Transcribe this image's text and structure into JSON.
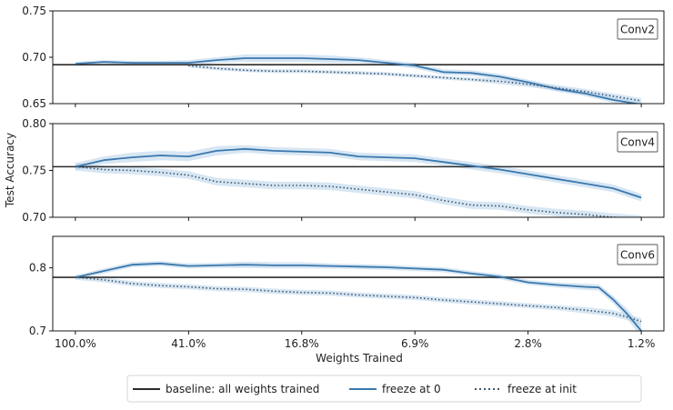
{
  "colors": {
    "baseline": "#2b2b2b",
    "freeze_zero": "#3a78ad",
    "freeze_init": "#3d556c",
    "band": "#b7d2ea"
  },
  "chart_data": [
    {
      "type": "line",
      "panel": "Conv2",
      "ylim": [
        0.65,
        0.75
      ],
      "yticks": [
        "0.65",
        "0.70",
        "0.75"
      ],
      "yticks_values": [
        0.65,
        0.7,
        0.75
      ],
      "baseline": 0.692,
      "series": [
        {
          "name": "freeze at 0",
          "style": "solid",
          "x": [
            0,
            5,
            10,
            15,
            20,
            25,
            30,
            35,
            40,
            45,
            50,
            55,
            60,
            65,
            70,
            75,
            80,
            85,
            90,
            95,
            100
          ],
          "values": [
            0.693,
            0.695,
            0.694,
            0.694,
            0.694,
            0.697,
            0.699,
            0.699,
            0.699,
            0.698,
            0.697,
            0.694,
            0.691,
            0.684,
            0.683,
            0.679,
            0.673,
            0.666,
            0.661,
            0.654,
            0.649
          ],
          "spread": [
            0.002,
            0.002,
            0.002,
            0.002,
            0.003,
            0.003,
            0.004,
            0.004,
            0.004,
            0.004,
            0.003,
            0.003,
            0.003,
            0.003,
            0.003,
            0.003,
            0.003,
            0.003,
            0.003,
            0.003,
            0.003
          ]
        },
        {
          "name": "freeze at init",
          "style": "dotted",
          "x": [
            20,
            25,
            30,
            35,
            40,
            45,
            50,
            55,
            60,
            65,
            70,
            75,
            80,
            85,
            90,
            95,
            100
          ],
          "values": [
            0.691,
            0.688,
            0.686,
            0.685,
            0.685,
            0.684,
            0.683,
            0.682,
            0.68,
            0.678,
            0.676,
            0.674,
            0.671,
            0.667,
            0.663,
            0.658,
            0.653
          ],
          "spread": [
            0.002,
            0.002,
            0.002,
            0.002,
            0.002,
            0.002,
            0.002,
            0.002,
            0.002,
            0.002,
            0.002,
            0.003,
            0.003,
            0.003,
            0.003,
            0.003,
            0.003
          ]
        }
      ]
    },
    {
      "type": "line",
      "panel": "Conv4",
      "ylim": [
        0.7,
        0.8
      ],
      "yticks": [
        "0.70",
        "0.75",
        "0.80"
      ],
      "yticks_values": [
        0.7,
        0.75,
        0.8
      ],
      "baseline": 0.754,
      "series": [
        {
          "name": "freeze at 0",
          "style": "solid",
          "x": [
            0,
            5,
            10,
            15,
            20,
            25,
            30,
            35,
            40,
            45,
            50,
            55,
            60,
            65,
            70,
            75,
            80,
            85,
            90,
            95,
            100
          ],
          "values": [
            0.754,
            0.761,
            0.764,
            0.766,
            0.765,
            0.771,
            0.773,
            0.771,
            0.77,
            0.769,
            0.765,
            0.764,
            0.763,
            0.759,
            0.755,
            0.751,
            0.746,
            0.741,
            0.736,
            0.731,
            0.721
          ],
          "spread": [
            0.004,
            0.004,
            0.005,
            0.005,
            0.005,
            0.005,
            0.004,
            0.004,
            0.004,
            0.004,
            0.004,
            0.004,
            0.004,
            0.004,
            0.004,
            0.004,
            0.004,
            0.004,
            0.004,
            0.004,
            0.004
          ]
        },
        {
          "name": "freeze at init",
          "style": "dotted",
          "x": [
            0,
            5,
            10,
            15,
            20,
            25,
            30,
            35,
            40,
            45,
            50,
            55,
            60,
            65,
            70,
            75,
            80,
            85,
            90,
            95,
            100
          ],
          "values": [
            0.754,
            0.751,
            0.75,
            0.748,
            0.745,
            0.738,
            0.736,
            0.734,
            0.734,
            0.733,
            0.73,
            0.727,
            0.724,
            0.718,
            0.713,
            0.712,
            0.708,
            0.705,
            0.703,
            0.7,
            0.698
          ],
          "spread": [
            0.004,
            0.004,
            0.004,
            0.004,
            0.004,
            0.004,
            0.004,
            0.004,
            0.004,
            0.004,
            0.004,
            0.004,
            0.004,
            0.004,
            0.004,
            0.004,
            0.004,
            0.004,
            0.004,
            0.004,
            0.004
          ]
        }
      ]
    },
    {
      "type": "line",
      "panel": "Conv6",
      "ylim": [
        0.7,
        0.85
      ],
      "yticks": [
        "0.7",
        "0.8"
      ],
      "yticks_values": [
        0.7,
        0.8
      ],
      "baseline": 0.785,
      "series": [
        {
          "name": "freeze at 0",
          "style": "solid",
          "x": [
            0,
            5,
            10,
            15,
            20,
            25,
            30,
            35,
            40,
            45,
            50,
            55,
            60,
            65,
            70,
            75,
            80,
            85,
            90,
            92.5,
            95,
            97.5,
            100
          ],
          "values": [
            0.785,
            0.795,
            0.805,
            0.807,
            0.803,
            0.804,
            0.805,
            0.804,
            0.804,
            0.803,
            0.802,
            0.801,
            0.799,
            0.797,
            0.791,
            0.786,
            0.777,
            0.773,
            0.77,
            0.769,
            0.75,
            0.727,
            0.7
          ],
          "spread": [
            0.003,
            0.004,
            0.004,
            0.004,
            0.004,
            0.004,
            0.005,
            0.005,
            0.005,
            0.004,
            0.004,
            0.004,
            0.004,
            0.004,
            0.004,
            0.004,
            0.004,
            0.004,
            0.005,
            0.005,
            0.006,
            0.008,
            0.01
          ]
        },
        {
          "name": "freeze at init",
          "style": "dotted",
          "x": [
            0,
            5,
            10,
            15,
            20,
            25,
            30,
            35,
            40,
            45,
            50,
            55,
            60,
            65,
            70,
            75,
            80,
            85,
            90,
            95,
            97.5,
            100
          ],
          "values": [
            0.785,
            0.781,
            0.775,
            0.772,
            0.77,
            0.767,
            0.766,
            0.763,
            0.761,
            0.76,
            0.757,
            0.755,
            0.753,
            0.749,
            0.746,
            0.743,
            0.74,
            0.737,
            0.733,
            0.728,
            0.722,
            0.715
          ],
          "spread": [
            0.004,
            0.004,
            0.004,
            0.004,
            0.004,
            0.004,
            0.004,
            0.004,
            0.004,
            0.004,
            0.004,
            0.004,
            0.004,
            0.004,
            0.004,
            0.004,
            0.004,
            0.004,
            0.005,
            0.005,
            0.005,
            0.005
          ]
        }
      ]
    }
  ],
  "x_axis": {
    "ticks": [
      "100.0%",
      "41.0%",
      "16.8%",
      "6.9%",
      "2.8%",
      "1.2%"
    ],
    "tick_positions": [
      0,
      20,
      40,
      60,
      80,
      100
    ],
    "xlim": [
      -4,
      104
    ],
    "label": "Weights Trained"
  },
  "y_axis_label": "Test Accuracy",
  "legend": {
    "items": [
      {
        "label": "baseline: all weights trained",
        "style": "solid-dark"
      },
      {
        "label": "freeze at 0",
        "style": "solid-blue"
      },
      {
        "label": "freeze at init",
        "style": "dotted"
      }
    ]
  }
}
